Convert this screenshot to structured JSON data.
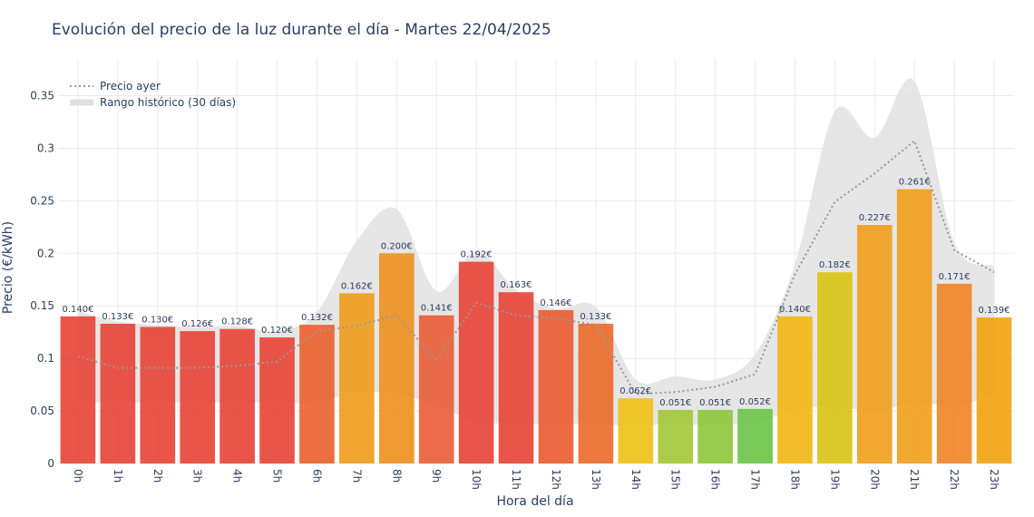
{
  "chart_data": {
    "type": "bar",
    "title": "Evolución del precio de la luz durante el día - Martes 22/04/2025",
    "xlabel": "Hora del día",
    "ylabel": "Precio (€/kWh)",
    "ylim": [
      0,
      0.385
    ],
    "yticks": [
      "0",
      "0.05",
      "0.1",
      "0.15",
      "0.2",
      "0.25",
      "0.3",
      "0.35"
    ],
    "ytick_values": [
      0,
      0.05,
      0.1,
      0.15,
      0.2,
      0.25,
      0.3,
      0.35
    ],
    "categories": [
      "0h",
      "1h",
      "2h",
      "3h",
      "4h",
      "5h",
      "6h",
      "7h",
      "8h",
      "9h",
      "10h",
      "11h",
      "12h",
      "13h",
      "14h",
      "15h",
      "16h",
      "17h",
      "18h",
      "19h",
      "20h",
      "21h",
      "22h",
      "23h"
    ],
    "values": [
      0.14,
      0.133,
      0.13,
      0.126,
      0.128,
      0.12,
      0.132,
      0.162,
      0.2,
      0.141,
      0.192,
      0.163,
      0.146,
      0.133,
      0.062,
      0.051,
      0.051,
      0.052,
      0.14,
      0.182,
      0.227,
      0.261,
      0.171,
      0.139
    ],
    "value_labels": [
      "0.140€",
      "0.133€",
      "0.130€",
      "0.126€",
      "0.128€",
      "0.120€",
      "0.132€",
      "0.162€",
      "0.200€",
      "0.141€",
      "0.192€",
      "0.163€",
      "0.146€",
      "0.133€",
      "0.062€",
      "0.051€",
      "0.051€",
      "0.052€",
      "0.140€",
      "0.182€",
      "0.227€",
      "0.261€",
      "0.171€",
      "0.139€"
    ],
    "bar_colors": [
      "#e8473a",
      "#e8473a",
      "#e8473a",
      "#e8473a",
      "#e8473a",
      "#e8473a",
      "#ea6332",
      "#ef9d20",
      "#ee9121",
      "#e9603a",
      "#e8473a",
      "#e8473a",
      "#ea5d34",
      "#ec6d2c",
      "#efc118",
      "#a5c93a",
      "#8fc83e",
      "#6ec64a",
      "#f1b716",
      "#d8c418",
      "#f09f1e",
      "#f09f1e",
      "#f0862a",
      "#f2a412"
    ],
    "series": [
      {
        "name": "Precio ayer",
        "style": "dotted",
        "color": "#999999",
        "values": [
          0.102,
          0.091,
          0.091,
          0.091,
          0.093,
          0.097,
          0.126,
          0.131,
          0.141,
          0.098,
          0.153,
          0.141,
          0.138,
          0.132,
          0.066,
          0.068,
          0.073,
          0.085,
          0.18,
          0.249,
          0.276,
          0.307,
          0.203,
          0.182
        ]
      },
      {
        "name": "Rango histórico (30 días)",
        "style": "band",
        "color": "#e3e3e3",
        "low": [
          0.058,
          0.058,
          0.058,
          0.058,
          0.058,
          0.058,
          0.058,
          0.068,
          0.066,
          0.055,
          0.04,
          0.038,
          0.038,
          0.038,
          0.036,
          0.038,
          0.036,
          0.04,
          0.05,
          0.055,
          0.049,
          0.058,
          0.055,
          0.065
        ],
        "high": [
          0.145,
          0.135,
          0.132,
          0.13,
          0.131,
          0.126,
          0.144,
          0.212,
          0.242,
          0.164,
          0.202,
          0.165,
          0.147,
          0.149,
          0.08,
          0.083,
          0.08,
          0.104,
          0.19,
          0.335,
          0.31,
          0.364,
          0.21,
          0.188
        ]
      }
    ],
    "legend_position": "top-left",
    "grid": true
  }
}
